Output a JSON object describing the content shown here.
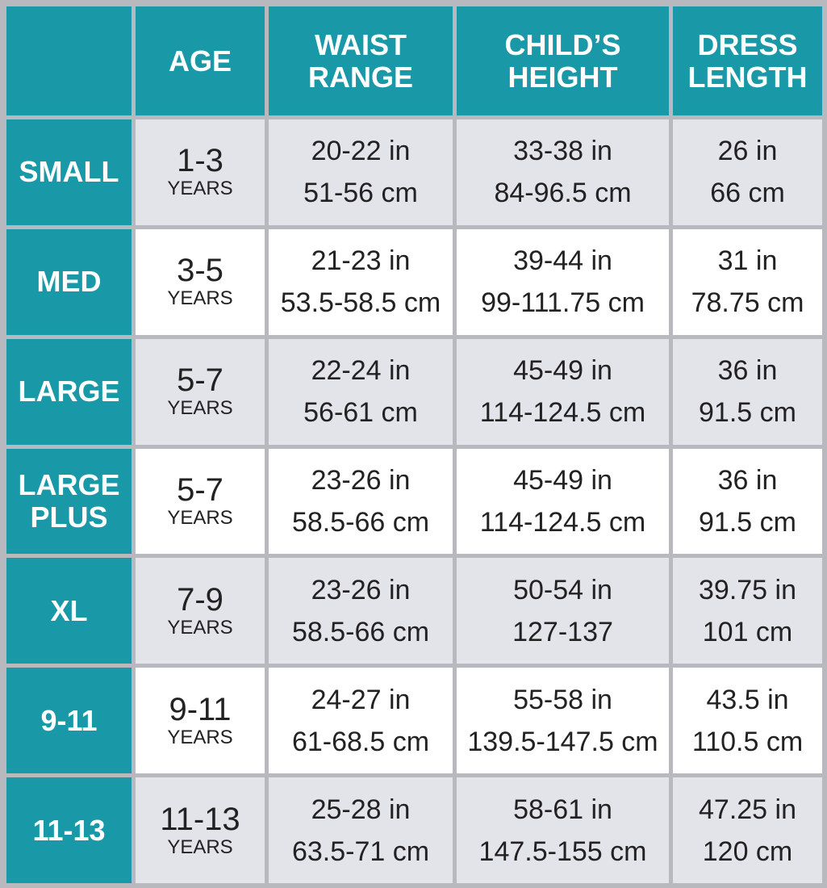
{
  "header": {
    "columns": [
      [
        "AGE"
      ],
      [
        "WAIST",
        "RANGE"
      ],
      [
        "CHILD’S",
        "HEIGHT"
      ],
      [
        "DRESS",
        "LENGTH"
      ]
    ]
  },
  "rows": [
    {
      "size": [
        "SMALL"
      ],
      "age": "1-3",
      "age_unit": "YEARS",
      "waist": [
        "20-22 in",
        "51-56 cm"
      ],
      "height": [
        "33-38 in",
        "84-96.5 cm"
      ],
      "length": [
        "26 in",
        "66 cm"
      ]
    },
    {
      "size": [
        "MED"
      ],
      "age": "3-5",
      "age_unit": "YEARS",
      "waist": [
        "21-23 in",
        "53.5-58.5 cm"
      ],
      "height": [
        "39-44 in",
        "99-111.75 cm"
      ],
      "length": [
        "31 in",
        "78.75 cm"
      ]
    },
    {
      "size": [
        "LARGE"
      ],
      "age": "5-7",
      "age_unit": "YEARS",
      "waist": [
        "22-24 in",
        "56-61 cm"
      ],
      "height": [
        "45-49 in",
        "114-124.5 cm"
      ],
      "length": [
        "36 in",
        "91.5 cm"
      ]
    },
    {
      "size": [
        "LARGE",
        "PLUS"
      ],
      "age": "5-7",
      "age_unit": "YEARS",
      "waist": [
        "23-26 in",
        "58.5-66 cm"
      ],
      "height": [
        "45-49 in",
        "114-124.5 cm"
      ],
      "length": [
        "36 in",
        "91.5 cm"
      ]
    },
    {
      "size": [
        "XL"
      ],
      "age": "7-9",
      "age_unit": "YEARS",
      "waist": [
        "23-26 in",
        "58.5-66 cm"
      ],
      "height": [
        "50-54 in",
        "127-137"
      ],
      "length": [
        "39.75 in",
        "101 cm"
      ]
    },
    {
      "size": [
        "9-11"
      ],
      "age": "9-11",
      "age_unit": "YEARS",
      "waist": [
        "24-27 in",
        "61-68.5 cm"
      ],
      "height": [
        "55-58 in",
        "139.5-147.5 cm"
      ],
      "length": [
        "43.5 in",
        "110.5 cm"
      ]
    },
    {
      "size": [
        "11-13"
      ],
      "age": "11-13",
      "age_unit": "YEARS",
      "waist": [
        "25-28 in",
        "63.5-71 cm"
      ],
      "height": [
        "58-61 in",
        "147.5-155 cm"
      ],
      "length": [
        "47.25 in",
        "120 cm"
      ]
    }
  ]
}
